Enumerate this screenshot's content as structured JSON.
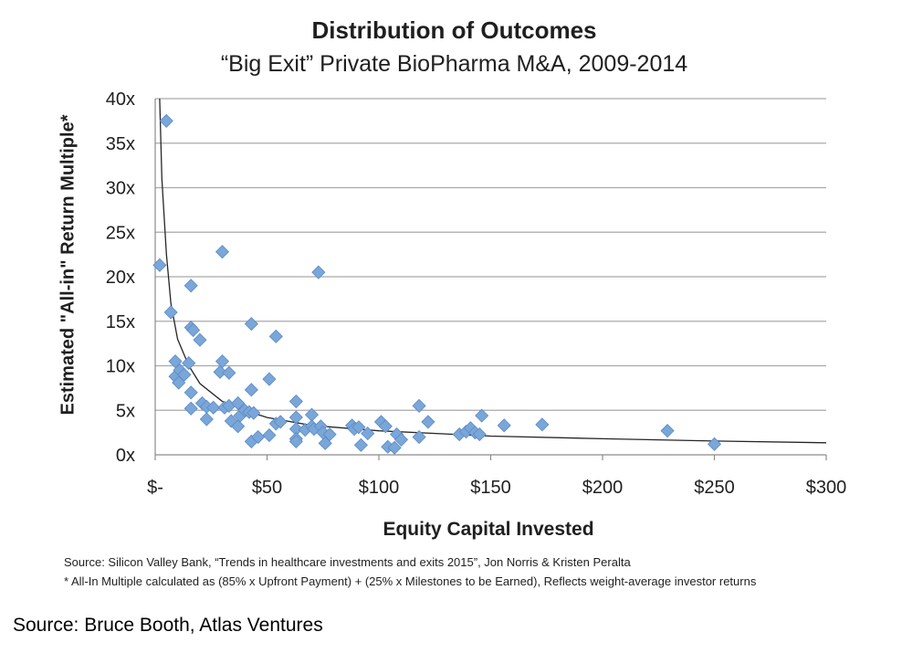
{
  "chart_data": {
    "type": "scatter",
    "title": "Distribution of Outcomes",
    "subtitle": "“Big Exit” Private BioPharma M&A, 2009-2014",
    "xlabel": "Equity Capital Invested",
    "ylabel": "Estimated \"All-in\" Return Multiple*",
    "xlim": [
      0,
      300
    ],
    "ylim": [
      0,
      40
    ],
    "x_ticks": [
      0,
      50,
      100,
      150,
      200,
      250,
      300
    ],
    "x_tick_labels": [
      "$-",
      "$50",
      "$100",
      "$150",
      "$200",
      "$250",
      "$300"
    ],
    "y_ticks": [
      0,
      5,
      10,
      15,
      20,
      25,
      30,
      35,
      40
    ],
    "y_tick_labels": [
      "0x",
      "5x",
      "10x",
      "15x",
      "20x",
      "25x",
      "30x",
      "35x",
      "40x"
    ],
    "grid": "horizontal",
    "marker_color": "#7aa6d8",
    "marker_edge_color": "#5b8bc8",
    "trendline": {
      "type": "power",
      "points": [
        {
          "x": 2,
          "y": 40
        },
        {
          "x": 3,
          "y": 31
        },
        {
          "x": 5,
          "y": 22.5
        },
        {
          "x": 7,
          "y": 17
        },
        {
          "x": 10,
          "y": 13
        },
        {
          "x": 15,
          "y": 10
        },
        {
          "x": 20,
          "y": 8
        },
        {
          "x": 30,
          "y": 6
        },
        {
          "x": 40,
          "y": 5
        },
        {
          "x": 50,
          "y": 4.2
        },
        {
          "x": 70,
          "y": 3.3
        },
        {
          "x": 100,
          "y": 2.7
        },
        {
          "x": 150,
          "y": 2.1
        },
        {
          "x": 200,
          "y": 1.8
        },
        {
          "x": 250,
          "y": 1.55
        },
        {
          "x": 300,
          "y": 1.35
        }
      ]
    },
    "points": [
      {
        "x": 5,
        "y": 37.5
      },
      {
        "x": 2,
        "y": 21.3
      },
      {
        "x": 7,
        "y": 16
      },
      {
        "x": 9,
        "y": 10.5
      },
      {
        "x": 9,
        "y": 8.8
      },
      {
        "x": 11,
        "y": 9.5
      },
      {
        "x": 10.5,
        "y": 8.1
      },
      {
        "x": 13,
        "y": 9
      },
      {
        "x": 15,
        "y": 10.3
      },
      {
        "x": 16,
        "y": 19
      },
      {
        "x": 16,
        "y": 14.3
      },
      {
        "x": 17,
        "y": 14
      },
      {
        "x": 20,
        "y": 12.9
      },
      {
        "x": 16,
        "y": 7
      },
      {
        "x": 16,
        "y": 5.2
      },
      {
        "x": 21,
        "y": 5.8
      },
      {
        "x": 23,
        "y": 5.4
      },
      {
        "x": 23,
        "y": 4
      },
      {
        "x": 26,
        "y": 5.3
      },
      {
        "x": 30,
        "y": 22.8
      },
      {
        "x": 29,
        "y": 9.3
      },
      {
        "x": 30,
        "y": 10.5
      },
      {
        "x": 33,
        "y": 9.2
      },
      {
        "x": 31,
        "y": 5.3
      },
      {
        "x": 33,
        "y": 5.5
      },
      {
        "x": 34,
        "y": 3.8
      },
      {
        "x": 37,
        "y": 3.2
      },
      {
        "x": 38,
        "y": 4.4
      },
      {
        "x": 37,
        "y": 5.8
      },
      {
        "x": 40,
        "y": 5
      },
      {
        "x": 43,
        "y": 7.3
      },
      {
        "x": 43,
        "y": 14.7
      },
      {
        "x": 42,
        "y": 4.8
      },
      {
        "x": 44,
        "y": 4.7
      },
      {
        "x": 43,
        "y": 1.5
      },
      {
        "x": 46,
        "y": 2
      },
      {
        "x": 51,
        "y": 8.5
      },
      {
        "x": 51,
        "y": 2.2
      },
      {
        "x": 54,
        "y": 13.3
      },
      {
        "x": 54,
        "y": 3.5
      },
      {
        "x": 56,
        "y": 3.7
      },
      {
        "x": 63,
        "y": 6
      },
      {
        "x": 63,
        "y": 4.2
      },
      {
        "x": 63,
        "y": 2.9
      },
      {
        "x": 63,
        "y": 1.8
      },
      {
        "x": 63,
        "y": 1.5
      },
      {
        "x": 67,
        "y": 2.8
      },
      {
        "x": 70,
        "y": 4.5
      },
      {
        "x": 70,
        "y": 3.2
      },
      {
        "x": 71,
        "y": 2.9
      },
      {
        "x": 73,
        "y": 20.5
      },
      {
        "x": 74,
        "y": 3.2
      },
      {
        "x": 75,
        "y": 2.5
      },
      {
        "x": 76,
        "y": 1.3
      },
      {
        "x": 78,
        "y": 2.3
      },
      {
        "x": 88,
        "y": 3.3
      },
      {
        "x": 89,
        "y": 2.9
      },
      {
        "x": 91,
        "y": 3.1
      },
      {
        "x": 92,
        "y": 1.1
      },
      {
        "x": 95,
        "y": 2.4
      },
      {
        "x": 101,
        "y": 3.7
      },
      {
        "x": 103,
        "y": 3.2
      },
      {
        "x": 104,
        "y": 0.9
      },
      {
        "x": 107,
        "y": 0.8
      },
      {
        "x": 108,
        "y": 2.3
      },
      {
        "x": 110,
        "y": 1.7
      },
      {
        "x": 118,
        "y": 5.5
      },
      {
        "x": 118,
        "y": 2
      },
      {
        "x": 122,
        "y": 3.7
      },
      {
        "x": 136,
        "y": 2.3
      },
      {
        "x": 139,
        "y": 2.6
      },
      {
        "x": 141,
        "y": 3
      },
      {
        "x": 143,
        "y": 2.5
      },
      {
        "x": 145,
        "y": 2.3
      },
      {
        "x": 146,
        "y": 4.4
      },
      {
        "x": 156,
        "y": 3.3
      },
      {
        "x": 173,
        "y": 3.4
      },
      {
        "x": 229,
        "y": 2.7
      },
      {
        "x": 250,
        "y": 1.2
      }
    ]
  },
  "notes": {
    "source": "Source: Silicon Valley Bank, “Trends in healthcare investments and exits 2015”, Jon Norris & Kristen Peralta",
    "footnote": "* All-In Multiple calculated as (85% x Upfront Payment) + (25% x Milestones to be Earned), Reflects weight-average investor returns"
  },
  "credit": "Source: Bruce Booth, Atlas Ventures"
}
